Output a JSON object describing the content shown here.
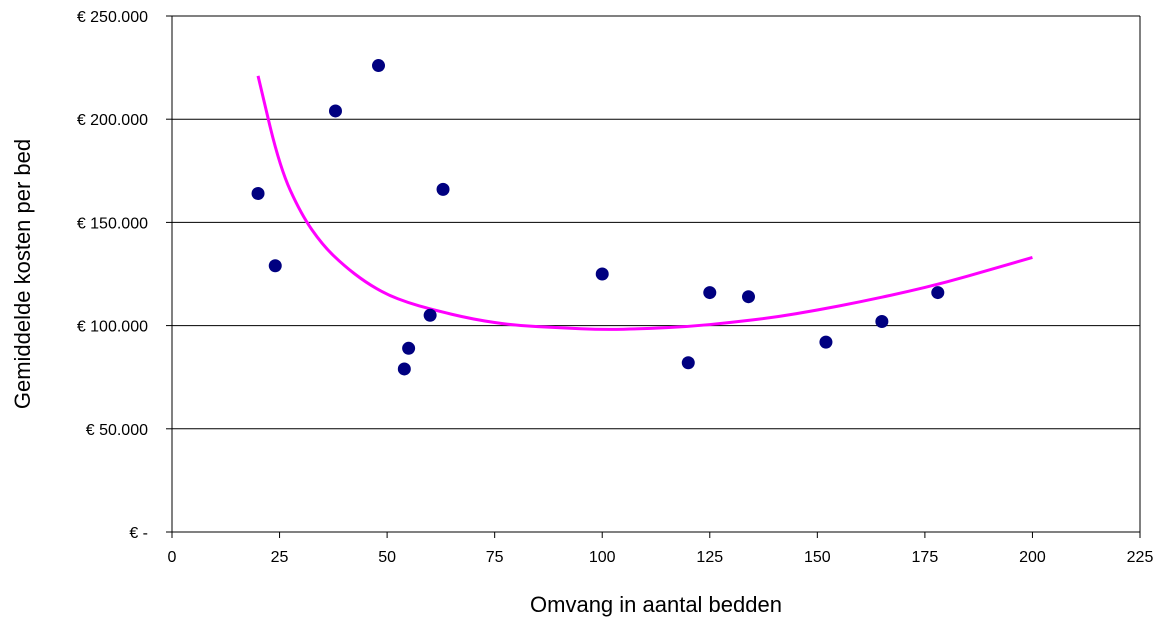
{
  "chart_data": {
    "type": "scatter",
    "title": "",
    "xlabel": "Omvang in aantal bedden",
    "ylabel": "Gemiddelde kosten per bed",
    "xlim": [
      0,
      225
    ],
    "ylim": [
      0,
      250000
    ],
    "x_ticks": [
      0,
      25,
      50,
      75,
      100,
      125,
      150,
      175,
      200,
      225
    ],
    "x_tick_labels": [
      "0",
      "25",
      "50",
      "75",
      "100",
      "125",
      "150",
      "175",
      "200",
      "225"
    ],
    "y_ticks": [
      0,
      50000,
      100000,
      150000,
      200000,
      250000
    ],
    "y_tick_labels": [
      "€ -",
      "€ 50.000",
      "€ 100.000",
      "€ 150.000",
      "€ 200.000",
      "€ 250.000"
    ],
    "grid": "horizontal",
    "marker_color": "#000080",
    "trend_color": "#ff00ff",
    "points": [
      {
        "x": 20,
        "y": 164000
      },
      {
        "x": 24,
        "y": 129000
      },
      {
        "x": 38,
        "y": 204000
      },
      {
        "x": 48,
        "y": 226000
      },
      {
        "x": 54,
        "y": 79000
      },
      {
        "x": 55,
        "y": 89000
      },
      {
        "x": 60,
        "y": 105000
      },
      {
        "x": 63,
        "y": 166000
      },
      {
        "x": 100,
        "y": 125000
      },
      {
        "x": 120,
        "y": 82000
      },
      {
        "x": 125,
        "y": 116000
      },
      {
        "x": 134,
        "y": 114000
      },
      {
        "x": 152,
        "y": 92000
      },
      {
        "x": 165,
        "y": 102000
      },
      {
        "x": 178,
        "y": 116000
      }
    ],
    "trendline": {
      "x": [
        20,
        25,
        30,
        35,
        40,
        45,
        50,
        55,
        60,
        70,
        80,
        90,
        100,
        110,
        120,
        130,
        140,
        150,
        160,
        170,
        180,
        190,
        200
      ],
      "y": [
        221000,
        177000,
        154000,
        139000,
        129000,
        121000,
        115000,
        111000,
        108000,
        103000,
        100000,
        99000,
        98000,
        98500,
        99500,
        101500,
        104000,
        107500,
        111500,
        116000,
        121000,
        127000,
        133000
      ]
    }
  }
}
